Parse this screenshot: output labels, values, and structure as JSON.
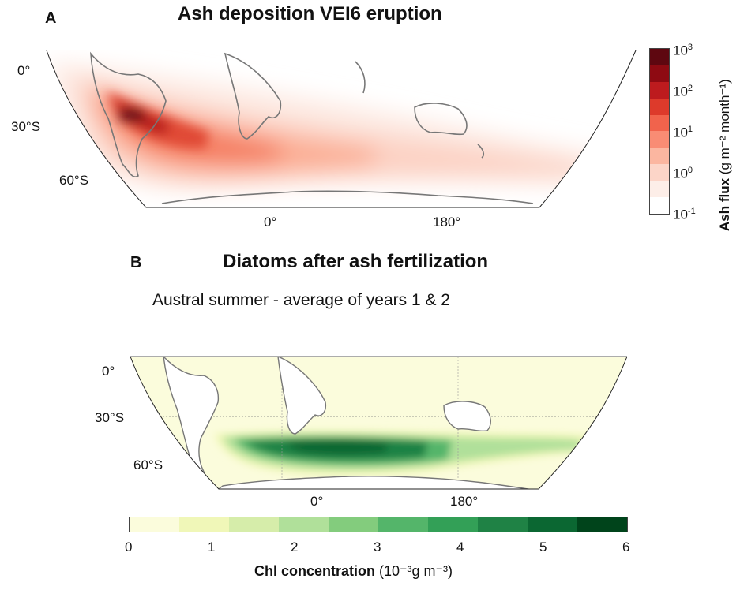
{
  "panel_a": {
    "letter": "A",
    "title": "Ash deposition VEI6 eruption",
    "lat_labels": [
      "0°",
      "30°S",
      "60°S"
    ],
    "lon_labels": [
      "0°",
      "180°"
    ],
    "colorbar": {
      "label_bold": "Ash flux",
      "label_units": "(g m⁻² month⁻¹)",
      "tick_base": "10",
      "ticks": [
        {
          "exp": "3"
        },
        {
          "exp": "2"
        },
        {
          "exp": "1"
        },
        {
          "exp": "0"
        },
        {
          "exp": "-1"
        }
      ],
      "scale": "log",
      "range": [
        0.1,
        1000
      ],
      "colors": [
        "#ffffff",
        "#fdeee8",
        "#fcd5c8",
        "#fbb6a0",
        "#f98c74",
        "#f1634c",
        "#dd3a2b",
        "#bd1b1e",
        "#8e0a12",
        "#5e0710"
      ]
    }
  },
  "panel_b": {
    "letter": "B",
    "title": "Diatoms after ash fertilization",
    "subtitle": "Austral summer - average of years 1 & 2",
    "lat_labels": [
      "0°",
      "30°S",
      "60°S"
    ],
    "lon_labels": [
      "0°",
      "180°"
    ],
    "colorbar": {
      "label_bold": "Chl concentration",
      "label_units": "(10⁻³g m⁻³)",
      "ticks": [
        "0",
        "1",
        "2",
        "3",
        "4",
        "5",
        "6"
      ],
      "range": [
        0,
        6
      ],
      "colors": [
        "#fbfcdc",
        "#f0f7b8",
        "#d6edaa",
        "#b0e09a",
        "#83cc7d",
        "#54b56a",
        "#33a057",
        "#1f8245",
        "#0b6732",
        "#00441b"
      ]
    }
  }
}
